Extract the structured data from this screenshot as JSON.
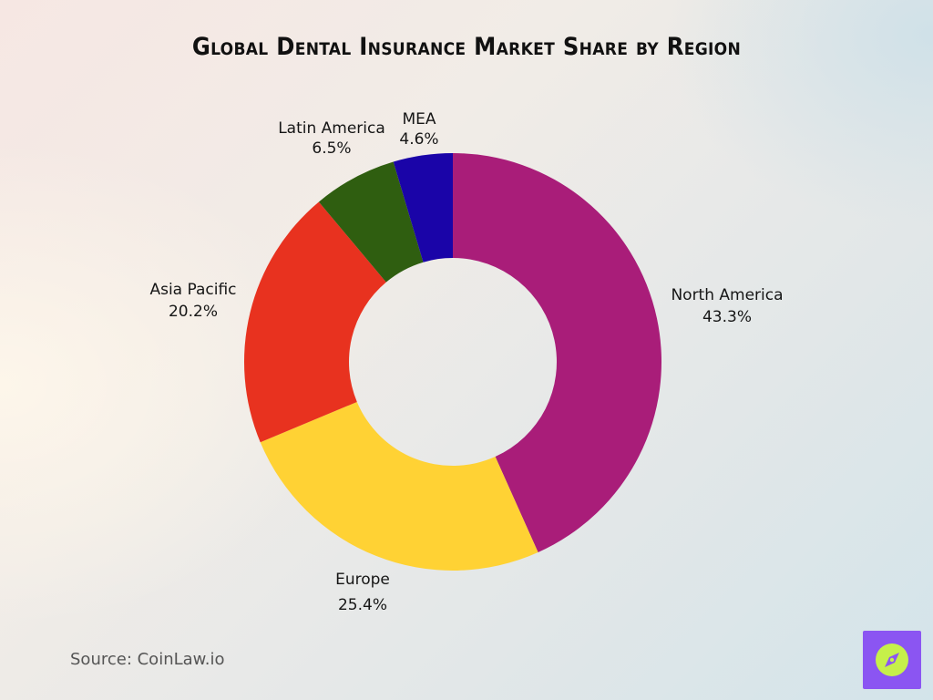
{
  "title": "Global Dental Insurance Market Share by Region",
  "source": "Source: CoinLaw.io",
  "logo_icon": "compass-logo-icon",
  "chart_data": {
    "type": "pie",
    "variant": "donut",
    "title": "Global Dental Insurance Market Share by Region",
    "categories": [
      "North America",
      "Europe",
      "Asia Pacific",
      "Latin America",
      "MEA"
    ],
    "values": [
      43.3,
      25.4,
      20.2,
      6.5,
      4.6
    ],
    "value_labels": [
      "43.3%",
      "25.4%",
      "20.2%",
      "6.5%",
      "4.6%"
    ],
    "colors": [
      "#a91d79",
      "#ffd234",
      "#e8321f",
      "#2f5e10",
      "#1a04a8"
    ],
    "start_angle": "top",
    "direction": "clockwise",
    "legend": "none"
  }
}
